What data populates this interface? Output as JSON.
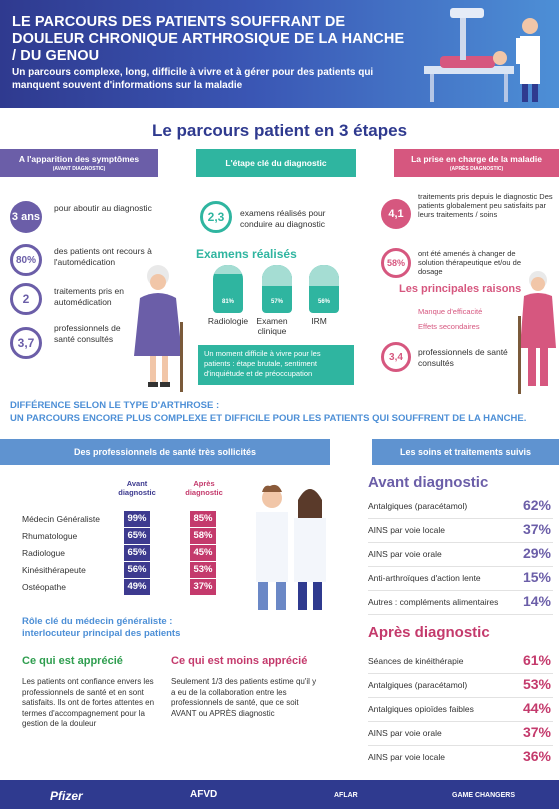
{
  "header": {
    "title": "LE PARCOURS DES PATIENTS SOUFFRANT DE DOULEUR CHRONIQUE ARTHROSIQUE  DE LA HANCHE / DU GENOU",
    "subtitle": "Un parcours complexe, long, difficile à vivre et à gérer pour des patients qui manquent souvent d'informations sur la maladie"
  },
  "section_title": "Le parcours patient en 3 étapes",
  "stage1": {
    "label": "A l'apparition des symptômes",
    "sublabel": "(AVANT DIAGNOSTIC)",
    "stats": [
      {
        "value": "3 ans",
        "text": "pour aboutir au diagnostic"
      },
      {
        "value": "80%",
        "text": "des patients ont recours à l'automédication"
      },
      {
        "value": "2",
        "text": "traitements pris en automédication"
      },
      {
        "value": "3,7",
        "text": "professionnels de santé consultés"
      }
    ]
  },
  "stage2": {
    "label": "L'étape clé du diagnostic",
    "stat": {
      "value": "2,3",
      "text": "examens réalisés pour conduire au diagnostic"
    },
    "exams_title": "Examens réalisés",
    "exams": [
      {
        "label": "Radiologie",
        "value": "81%",
        "fill": 0.81
      },
      {
        "label": "Examen clinique",
        "value": "57%",
        "fill": 0.57
      },
      {
        "label": "IRM",
        "value": "56%",
        "fill": 0.56
      }
    ],
    "note": "Un moment difficile à vivre pour les patients : étape brutale, sentiment d'inquiétude et de préoccupation"
  },
  "stage3": {
    "label": "La prise en charge de la maladie",
    "sublabel": "(APRÈS DIAGNOSTIC)",
    "stat1": {
      "value": "4,1",
      "text": "traitements pris depuis le diagnostic Des patients globalement peu satisfaits par leurs traitements / soins"
    },
    "stat2": {
      "value": "58%",
      "text": "ont été amenés à changer de solution thérapeutique et/ou de dosage"
    },
    "reasons_title": "Les principales raisons",
    "reasons": [
      "Manque d'efficacité",
      "Effets secondaires"
    ],
    "stat3": {
      "value": "3,4",
      "text": "professionnels de santé consultés"
    }
  },
  "difference": {
    "line1": "DIFFÉRENCE SELON LE TYPE D'ARTHROSE  :",
    "line2": "UN PARCOURS ENCORE PLUS COMPLEXE ET DIFFICILE POUR LES PATIENTS QUI SOUFFRENT DE LA HANCHE."
  },
  "professionals": {
    "band": "Des professionnels de santé très sollicités",
    "col_before": "Avant diagnostic",
    "col_after": "Après diagnostic",
    "rows": [
      {
        "name": "Médecin Généraliste",
        "before": "99%",
        "after": "85%"
      },
      {
        "name": "Rhumatologue",
        "before": "65%",
        "after": "58%"
      },
      {
        "name": "Radiologue",
        "before": "65%",
        "after": "45%"
      },
      {
        "name": "Kinésithérapeute",
        "before": "56%",
        "after": "53%"
      },
      {
        "name": "Ostéopathe",
        "before": "49%",
        "after": "37%"
      }
    ],
    "role_line1": "Rôle clé du médecin généraliste :",
    "role_line2": "interlocuteur principal des patients"
  },
  "appreciated": {
    "title": "Ce qui est apprécié",
    "text": "Les patients ont confiance envers les professionnels de santé et en sont satisfaits. Ils ont de fortes attentes en termes d'accompagnement pour la gestion de la douleur"
  },
  "less_appreciated": {
    "title": "Ce qui est moins apprécié",
    "text": "Seulement 1/3 des patients estime qu'il y a eu de la collaboration entre les professionnels de santé, que ce soit AVANT ou APRÈS diagnostic"
  },
  "treatments": {
    "band": "Les soins et traitements suivis",
    "before_title": "Avant diagnostic",
    "before": [
      {
        "name": "Antalgiques (paracétamol)",
        "value": "62%"
      },
      {
        "name": "AINS par voie locale",
        "value": "37%"
      },
      {
        "name": "AINS par voie orale",
        "value": "29%"
      },
      {
        "name": "Anti-arthroïques d'action lente",
        "value": "15%"
      },
      {
        "name": "Autres : compléments alimentaires",
        "value": "14%"
      }
    ],
    "after_title": "Après diagnostic",
    "after": [
      {
        "name": "Séances de kinéithérapie",
        "value": "61%"
      },
      {
        "name": "Antalgiques (paracétamol)",
        "value": "53%"
      },
      {
        "name": "Antalgiques opioïdes faibles",
        "value": "44%"
      },
      {
        "name": "AINS par voie orale",
        "value": "37%"
      },
      {
        "name": "AINS par voie locale",
        "value": "36%"
      }
    ]
  },
  "footer": {
    "logos": [
      "Pfizer",
      "AFVD",
      "AFLAR",
      "GAME CHANGERS"
    ]
  },
  "colors": {
    "purple": "#6b5ea8",
    "teal": "#2fb5a0",
    "pink": "#d6577f",
    "blue": "#5f93d0",
    "navy": "#2f3a8f"
  }
}
